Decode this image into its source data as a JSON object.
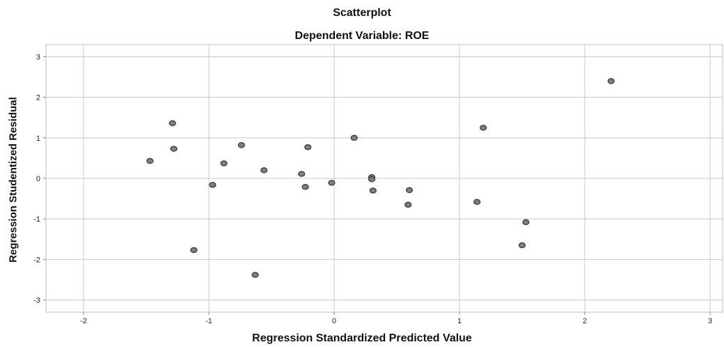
{
  "chart_data": {
    "type": "scatter",
    "title": "Scatterplot",
    "subtitle": "Dependent Variable: ROE",
    "xlabel": "Regression Standardized Predicted Value",
    "ylabel": "Regression Studentized Residual",
    "xlim": [
      -2.3,
      3.1
    ],
    "ylim": [
      -3.3,
      3.3
    ],
    "xticks": [
      -2,
      -1,
      0,
      1,
      2,
      3
    ],
    "yticks": [
      -3,
      -2,
      -1,
      0,
      1,
      2,
      3
    ],
    "grid": true,
    "marker_color": "#7f7f7f",
    "marker_edge": "#333333",
    "points": [
      {
        "x": 2.21,
        "y": 2.4
      },
      {
        "x": -1.29,
        "y": 1.36
      },
      {
        "x": 1.19,
        "y": 1.25
      },
      {
        "x": 0.16,
        "y": 1.0
      },
      {
        "x": -0.74,
        "y": 0.82
      },
      {
        "x": -0.21,
        "y": 0.77
      },
      {
        "x": -1.28,
        "y": 0.73
      },
      {
        "x": -1.47,
        "y": 0.43
      },
      {
        "x": -0.88,
        "y": 0.37
      },
      {
        "x": -0.56,
        "y": 0.2
      },
      {
        "x": -0.26,
        "y": 0.11
      },
      {
        "x": 0.3,
        "y": 0.03
      },
      {
        "x": 0.3,
        "y": -0.02
      },
      {
        "x": -0.02,
        "y": -0.11
      },
      {
        "x": -0.97,
        "y": -0.16
      },
      {
        "x": -0.23,
        "y": -0.21
      },
      {
        "x": 0.31,
        "y": -0.3
      },
      {
        "x": 0.6,
        "y": -0.29
      },
      {
        "x": 1.14,
        "y": -0.58
      },
      {
        "x": 0.59,
        "y": -0.65
      },
      {
        "x": 1.53,
        "y": -1.08
      },
      {
        "x": -1.12,
        "y": -1.77
      },
      {
        "x": 1.5,
        "y": -1.65
      },
      {
        "x": -0.63,
        "y": -2.38
      }
    ]
  }
}
